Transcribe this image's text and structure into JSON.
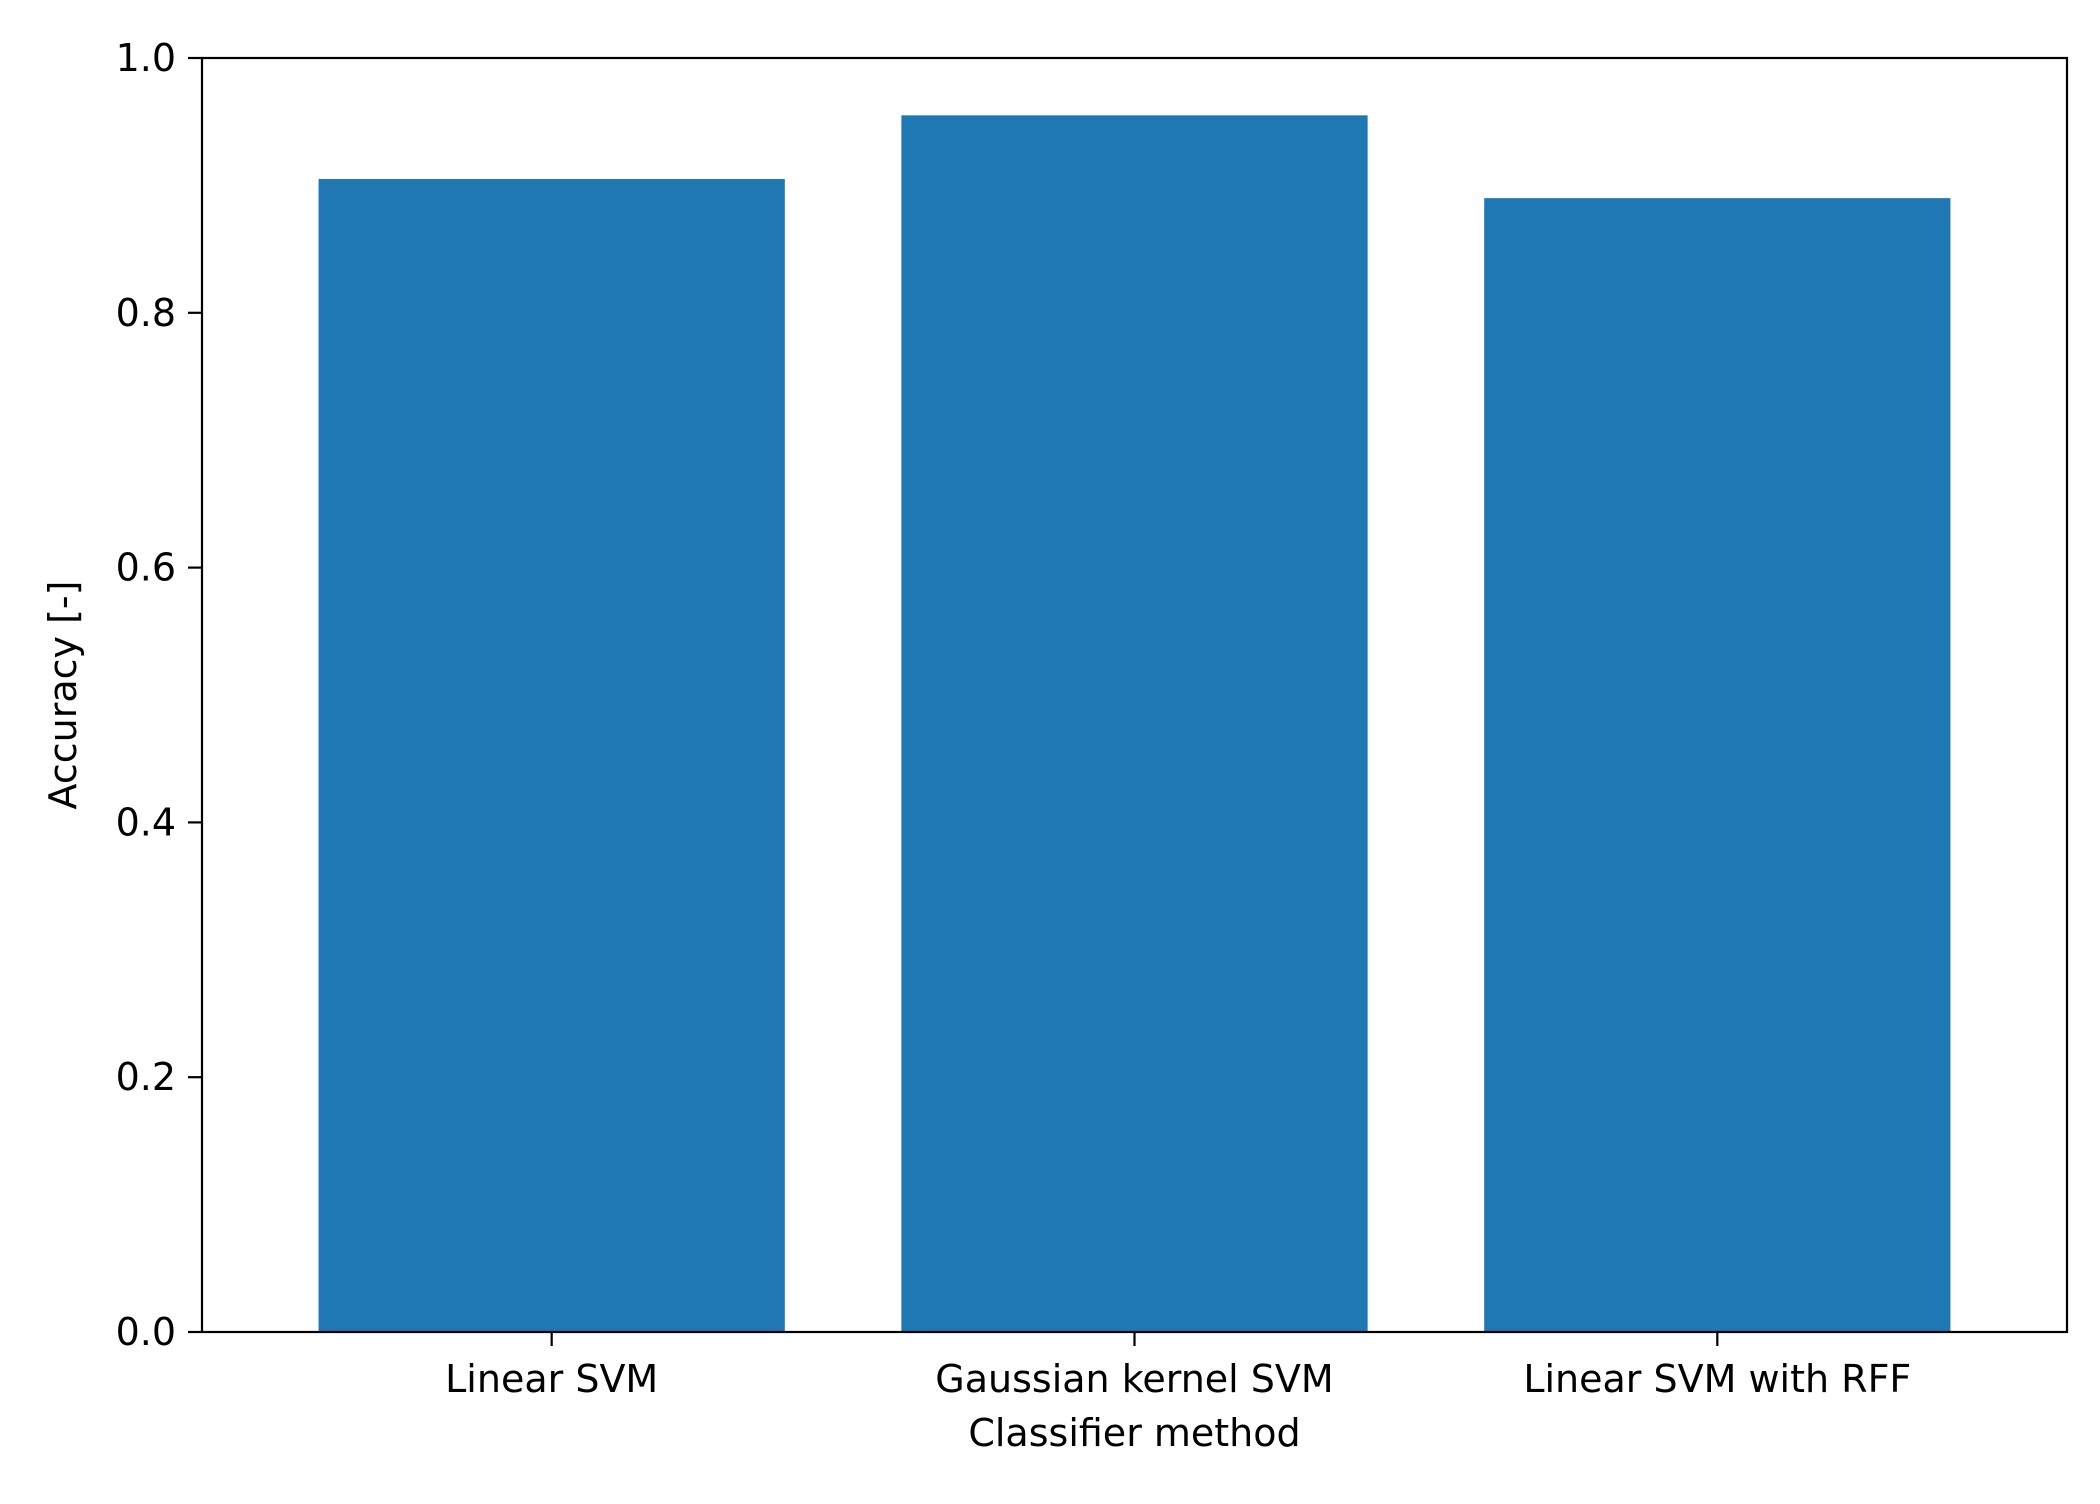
{
  "chart_data": {
    "type": "bar",
    "title": "",
    "xlabel": "Classifier method",
    "ylabel": "Accuracy [-]",
    "categories": [
      "Linear SVM",
      "Gaussian kernel SVM",
      "Linear SVM with RFF"
    ],
    "values": [
      0.905,
      0.955,
      0.89
    ],
    "ylim": [
      0.0,
      1.0
    ],
    "yticks": [
      0.0,
      0.2,
      0.4,
      0.6,
      0.8,
      1.0
    ],
    "ytick_labels": [
      "0.0",
      "0.2",
      "0.4",
      "0.6",
      "0.8",
      "1.0"
    ],
    "grid": false,
    "legend": "none",
    "bar_color": "#1f77b4"
  }
}
